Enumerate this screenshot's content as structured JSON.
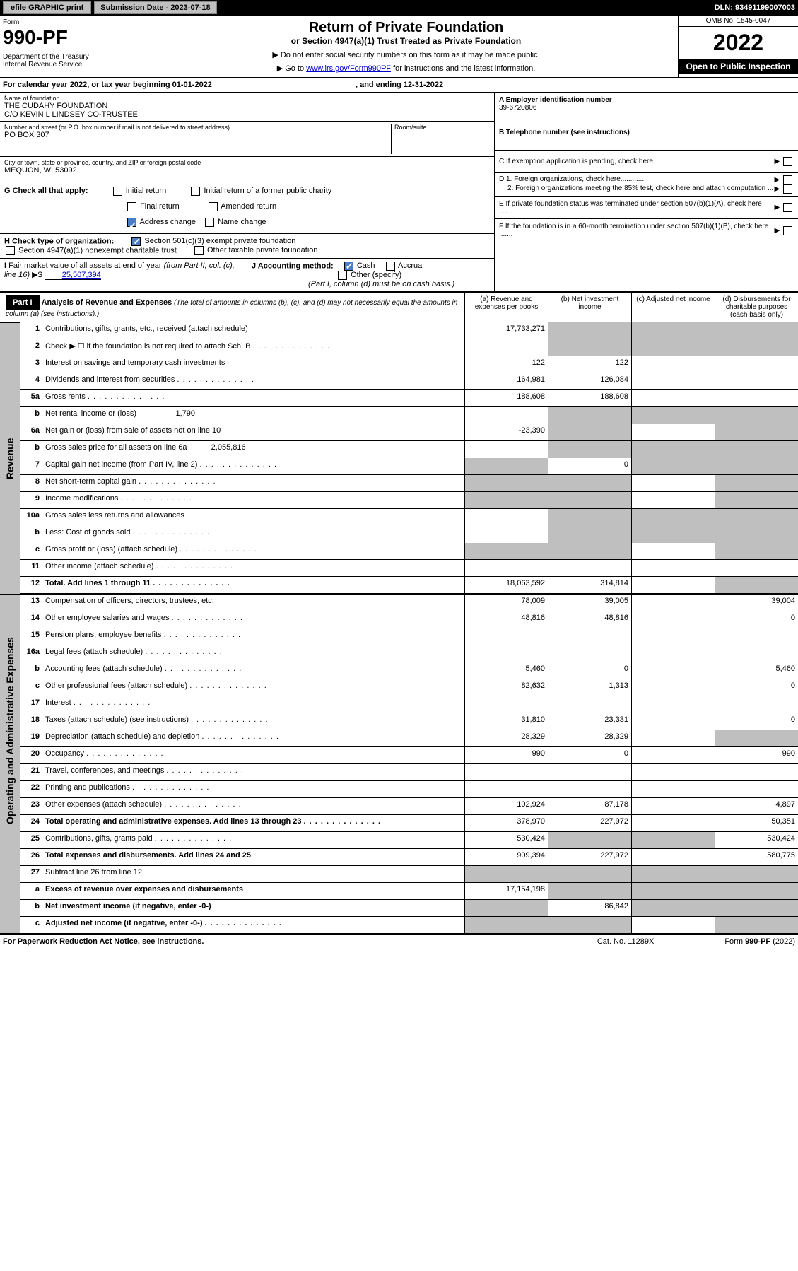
{
  "topbar": {
    "efile": "efile GRAPHIC print",
    "sub_label": "Submission Date - 2023-07-18",
    "dln": "DLN: 93491199007003"
  },
  "header": {
    "form_label": "Form",
    "form_num": "990-PF",
    "dept": "Department of the Treasury\nInternal Revenue Service",
    "title": "Return of Private Foundation",
    "sub1": "or Section 4947(a)(1) Trust Treated as Private Foundation",
    "sub2": "▶ Do not enter social security numbers on this form as it may be made public.",
    "sub3_prefix": "▶ Go to ",
    "sub3_link": "www.irs.gov/Form990PF",
    "sub3_suffix": " for instructions and the latest information.",
    "omb": "OMB No. 1545-0047",
    "year": "2022",
    "open": "Open to Public Inspection"
  },
  "cal": "For calendar year 2022, or tax year beginning 01-01-2022",
  "cal_end": ", and ending 12-31-2022",
  "info": {
    "name_label": "Name of foundation",
    "name1": "THE CUDAHY FOUNDATION",
    "name2": "C/O KEVIN L LINDSEY CO-TRUSTEE",
    "addr_label": "Number and street (or P.O. box number if mail is not delivered to street address)",
    "room_label": "Room/suite",
    "addr": "PO BOX 307",
    "city_label": "City or town, state or province, country, and ZIP or foreign postal code",
    "city": "MEQUON, WI  53092",
    "ein_label": "A Employer identification number",
    "ein": "39-6720806",
    "tel_label": "B Telephone number (see instructions)",
    "c_label": "C If exemption application is pending, check here",
    "d1": "D 1. Foreign organizations, check here.............",
    "d2": "2. Foreign organizations meeting the 85% test, check here and attach computation ...",
    "e_label": "E  If private foundation status was terminated under section 507(b)(1)(A), check here .......",
    "f_label": "F  If the foundation is in a 60-month termination under section 507(b)(1)(B), check here ......."
  },
  "g": {
    "label": "G Check all that apply:",
    "opts": [
      "Initial return",
      "Final return",
      "Address change",
      "Initial return of a former public charity",
      "Amended return",
      "Name change"
    ]
  },
  "h": {
    "label": "H Check type of organization:",
    "o1": "Section 501(c)(3) exempt private foundation",
    "o2": "Section 4947(a)(1) nonexempt charitable trust",
    "o3": "Other taxable private foundation"
  },
  "i": {
    "label": "I Fair market value of all assets at end of year (from Part II, col. (c), line 16)  ▶$",
    "val": "25,507,394"
  },
  "j": {
    "label": "J Accounting method:",
    "o1": "Cash",
    "o2": "Accrual",
    "o3": "Other (specify)",
    "note": "(Part I, column (d) must be on cash basis.)"
  },
  "part1": {
    "tag": "Part I",
    "title": "Analysis of Revenue and Expenses",
    "ital": " (The total of amounts in columns (b), (c), and (d) may not necessarily equal the amounts in column (a) (see instructions).)",
    "cols": [
      "(a)   Revenue and expenses per books",
      "(b)   Net investment income",
      "(c)   Adjusted net income",
      "(d)   Disbursements for charitable purposes (cash basis only)"
    ]
  },
  "revenue": {
    "tab": "Revenue",
    "rows": [
      {
        "n": "1",
        "d": "Contributions, gifts, grants, etc., received (attach schedule)",
        "a": "17,733,271",
        "gb": true,
        "gc": true,
        "gd": true
      },
      {
        "n": "2",
        "d": "Check ▶ ☐ if the foundation is not required to attach Sch. B",
        "dots": true,
        "noa": true,
        "gb": true,
        "gc": true,
        "gd": true
      },
      {
        "n": "3",
        "d": "Interest on savings and temporary cash investments",
        "a": "122",
        "b": "122"
      },
      {
        "n": "4",
        "d": "Dividends and interest from securities",
        "dots": true,
        "a": "164,981",
        "b": "126,084"
      },
      {
        "n": "5a",
        "d": "Gross rents",
        "dots": true,
        "a": "188,608",
        "b": "188,608"
      },
      {
        "n": "b",
        "d": "Net rental income or (loss)",
        "inl": "1,790",
        "noa": true,
        "gb": true,
        "gc": true,
        "gd": true,
        "nb": true
      },
      {
        "n": "6a",
        "d": "Net gain or (loss) from sale of assets not on line 10",
        "a": "-23,390",
        "gb": true,
        "gd": true
      },
      {
        "n": "b",
        "d": "Gross sales price for all assets on line 6a",
        "inl": "2,055,816",
        "noa": true,
        "gb": true,
        "gc": true,
        "gd": true,
        "nb": true
      },
      {
        "n": "7",
        "d": "Capital gain net income (from Part IV, line 2)",
        "dots": true,
        "ga": true,
        "b": "0",
        "gc": true,
        "gd": true
      },
      {
        "n": "8",
        "d": "Net short-term capital gain",
        "dots": true,
        "ga": true,
        "gb": true,
        "gd": true
      },
      {
        "n": "9",
        "d": "Income modifications",
        "dots": true,
        "ga": true,
        "gb": true,
        "gd": true
      },
      {
        "n": "10a",
        "d": "Gross sales less returns and allowances",
        "inl": " ",
        "noa": true,
        "gb": true,
        "gc": true,
        "gd": true,
        "nb": true
      },
      {
        "n": "b",
        "d": "Less: Cost of goods sold",
        "dots": true,
        "inl": " ",
        "noa": true,
        "gb": true,
        "gc": true,
        "gd": true,
        "nb": true
      },
      {
        "n": "c",
        "d": "Gross profit or (loss) (attach schedule)",
        "dots": true,
        "ga": true,
        "gb": true,
        "gd": true
      },
      {
        "n": "11",
        "d": "Other income (attach schedule)",
        "dots": true
      },
      {
        "n": "12",
        "d": "Total. Add lines 1 through 11",
        "dots": true,
        "bold": true,
        "a": "18,063,592",
        "b": "314,814",
        "gd": true
      }
    ]
  },
  "opex": {
    "tab": "Operating and Administrative Expenses",
    "rows": [
      {
        "n": "13",
        "d": "Compensation of officers, directors, trustees, etc.",
        "a": "78,009",
        "b": "39,005",
        "d4": "39,004"
      },
      {
        "n": "14",
        "d": "Other employee salaries and wages",
        "dots": true,
        "a": "48,816",
        "b": "48,816",
        "d4": "0"
      },
      {
        "n": "15",
        "d": "Pension plans, employee benefits",
        "dots": true
      },
      {
        "n": "16a",
        "d": "Legal fees (attach schedule)",
        "dots": true
      },
      {
        "n": "b",
        "d": "Accounting fees (attach schedule)",
        "dots": true,
        "a": "5,460",
        "b": "0",
        "d4": "5,460"
      },
      {
        "n": "c",
        "d": "Other professional fees (attach schedule)",
        "dots": true,
        "a": "82,632",
        "b": "1,313",
        "d4": "0"
      },
      {
        "n": "17",
        "d": "Interest",
        "dots": true
      },
      {
        "n": "18",
        "d": "Taxes (attach schedule) (see instructions)",
        "dots": true,
        "a": "31,810",
        "b": "23,331",
        "d4": "0"
      },
      {
        "n": "19",
        "d": "Depreciation (attach schedule) and depletion",
        "dots": true,
        "a": "28,329",
        "b": "28,329",
        "gd": true
      },
      {
        "n": "20",
        "d": "Occupancy",
        "dots": true,
        "a": "990",
        "b": "0",
        "d4": "990"
      },
      {
        "n": "21",
        "d": "Travel, conferences, and meetings",
        "dots": true
      },
      {
        "n": "22",
        "d": "Printing and publications",
        "dots": true
      },
      {
        "n": "23",
        "d": "Other expenses (attach schedule)",
        "dots": true,
        "a": "102,924",
        "b": "87,178",
        "d4": "4,897"
      },
      {
        "n": "24",
        "d": "Total operating and administrative expenses. Add lines 13 through 23",
        "dots": true,
        "bold": true,
        "a": "378,970",
        "b": "227,972",
        "d4": "50,351"
      },
      {
        "n": "25",
        "d": "Contributions, gifts, grants paid",
        "dots": true,
        "a": "530,424",
        "gb": true,
        "gc": true,
        "d4": "530,424"
      },
      {
        "n": "26",
        "d": "Total expenses and disbursements. Add lines 24 and 25",
        "bold": true,
        "a": "909,394",
        "b": "227,972",
        "d4": "580,775"
      }
    ]
  },
  "bottom": {
    "rows": [
      {
        "n": "27",
        "d": "Subtract line 26 from line 12:",
        "ga": true,
        "gb": true,
        "gc": true,
        "gd": true
      },
      {
        "n": "a",
        "d": "Excess of revenue over expenses and disbursements",
        "bold": true,
        "a": "17,154,198",
        "gb": true,
        "gc": true,
        "gd": true
      },
      {
        "n": "b",
        "d": "Net investment income (if negative, enter -0-)",
        "bold": true,
        "ga": true,
        "b": "86,842",
        "gc": true,
        "gd": true
      },
      {
        "n": "c",
        "d": "Adjusted net income (if negative, enter -0-)",
        "dots": true,
        "bold": true,
        "ga": true,
        "gb": true,
        "gd": true
      }
    ]
  },
  "footer": {
    "left": "For Paperwork Reduction Act Notice, see instructions.",
    "mid": "Cat. No. 11289X",
    "right": "Form 990-PF (2022)"
  }
}
